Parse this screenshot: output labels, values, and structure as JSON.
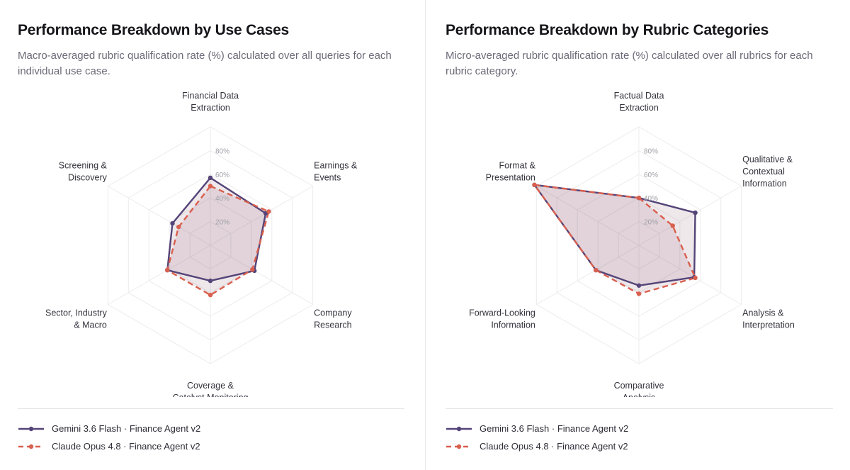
{
  "colors": {
    "primary": "#544478",
    "secondary": "#d95f4e",
    "grid": "#ececee",
    "fill": "#7a3f5a"
  },
  "legend": [
    {
      "label": "Gemini 3.6 Flash · Finance Agent v2",
      "color": "#544478",
      "style": "solid"
    },
    {
      "label": "Claude Opus 4.8 · Finance Agent v2",
      "color": "#d95f4e",
      "style": "dashed"
    }
  ],
  "chart_data": [
    {
      "type": "radar",
      "title": "Performance Breakdown by Use Cases",
      "subtitle": "Macro-averaged rubric qualification rate (%) calculated over all queries for each individual use case.",
      "axes": [
        [
          "Financial Data",
          "Extraction"
        ],
        [
          "Earnings &",
          "Events"
        ],
        [
          "Company",
          "Research"
        ],
        [
          "Coverage &",
          "Catalyst Monitoring"
        ],
        [
          "Sector, Industry",
          "& Macro"
        ],
        [
          "Screening &",
          "Discovery"
        ]
      ],
      "ticks": [
        "20%",
        "40%",
        "60%",
        "80%"
      ],
      "rmax": 100,
      "series": [
        {
          "name": "Gemini 3.6 Flash · Finance Agent v2",
          "values": [
            57,
            54,
            43,
            30,
            42,
            37
          ]
        },
        {
          "name": "Claude Opus 4.8 · Finance Agent v2",
          "values": [
            50,
            57,
            41,
            42,
            42,
            31
          ]
        }
      ]
    },
    {
      "type": "radar",
      "title": "Performance Breakdown by Rubric Categories",
      "subtitle": "Micro-averaged rubric qualification rate (%) calculated over all rubrics for each rubric category.",
      "axes": [
        [
          "Factual Data",
          "Extraction"
        ],
        [
          "Qualitative &",
          "Contextual",
          "Information"
        ],
        [
          "Analysis &",
          "Interpretation"
        ],
        [
          "Comparative",
          "Analysis"
        ],
        [
          "Forward-Looking",
          "Information"
        ],
        [
          "Format &",
          "Presentation"
        ]
      ],
      "ticks": [
        "20%",
        "40%",
        "60%",
        "80%"
      ],
      "rmax": 100,
      "series": [
        {
          "name": "Gemini 3.6 Flash · Finance Agent v2",
          "values": [
            40,
            55,
            54,
            34,
            42,
            102
          ]
        },
        {
          "name": "Claude Opus 4.8 · Finance Agent v2",
          "values": [
            40,
            33,
            55,
            41,
            42,
            102
          ]
        }
      ]
    }
  ]
}
